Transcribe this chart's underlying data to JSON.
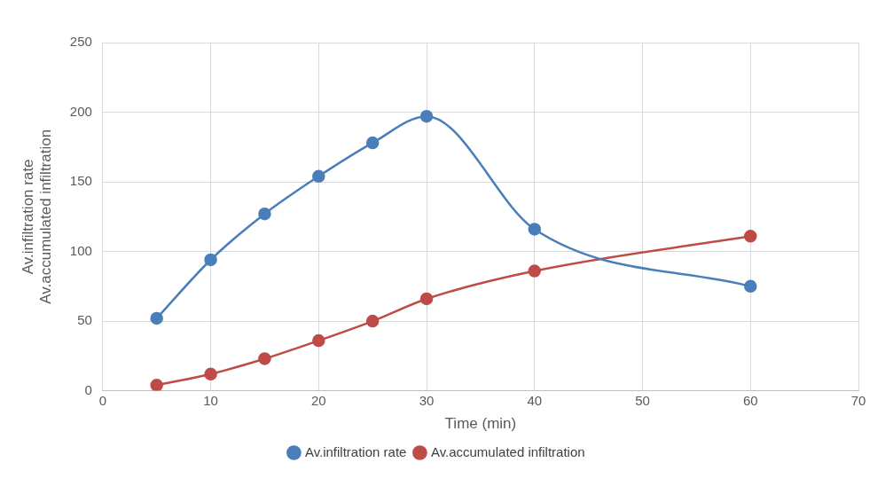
{
  "chart_data": {
    "type": "line",
    "xlabel": "Time (min)",
    "ylabel": "Av.infiltration rate\nAv.accumulated infiltration",
    "x": [
      5,
      10,
      15,
      20,
      25,
      30,
      40,
      60
    ],
    "series": [
      {
        "name": "Av.infiltration rate",
        "color": "#4a7ebb",
        "values": [
          52,
          94,
          127,
          154,
          178,
          197,
          116,
          75
        ]
      },
      {
        "name": "Av.accumulated infiltration",
        "color": "#be4b48",
        "values": [
          4,
          12,
          23,
          36,
          50,
          66,
          86,
          111
        ]
      }
    ],
    "xlim": [
      0,
      70
    ],
    "xticks": [
      0,
      10,
      20,
      30,
      40,
      50,
      60,
      70
    ],
    "ylim": [
      0,
      250
    ],
    "yticks": [
      0,
      50,
      100,
      150,
      200,
      250
    ],
    "grid": true,
    "legend": "bottom",
    "marker": "circle",
    "line_style": "solid"
  }
}
